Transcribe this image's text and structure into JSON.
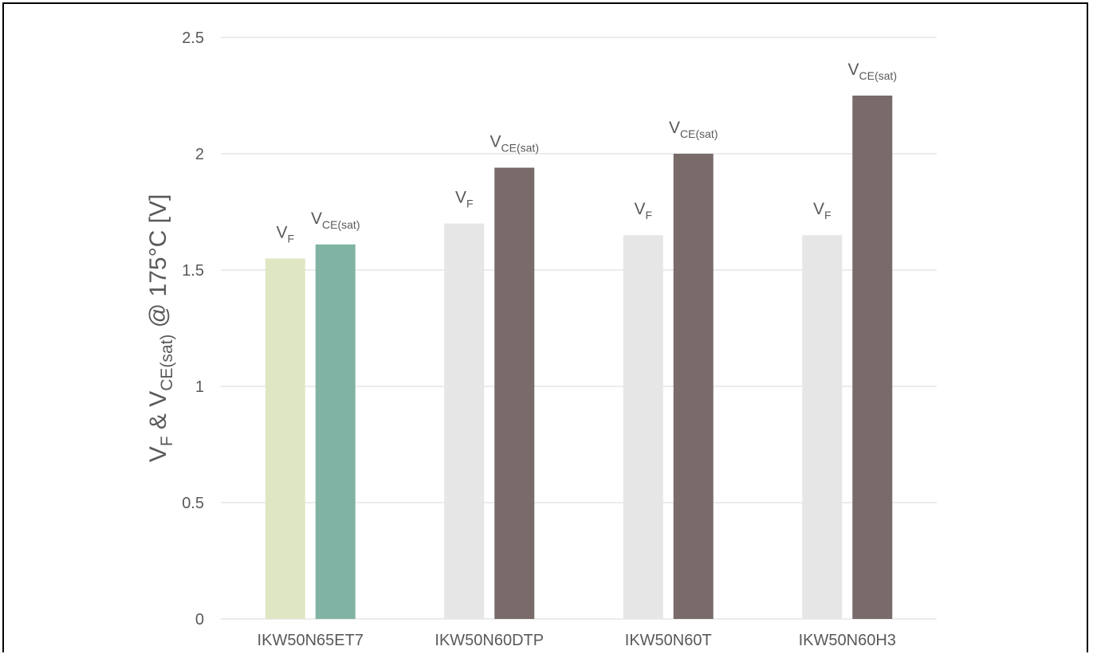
{
  "chart_data": {
    "type": "bar",
    "ylabel": {
      "parts": [
        "V",
        "F",
        " & V",
        "CE(sat)",
        " @ 175°C [V]"
      ]
    },
    "ylim": [
      0,
      2.5
    ],
    "yticks": [
      "0",
      "0.5",
      "1",
      "1.5",
      "2",
      "2.5"
    ],
    "ytick_values": [
      0,
      0.5,
      1,
      1.5,
      2,
      2.5
    ],
    "grid": true,
    "categories": [
      "IKW50N65ET7",
      "IKW50N60DTP",
      "IKW50N60T",
      "IKW50N60H3"
    ],
    "series": [
      {
        "label_main": "V",
        "label_sub": "F",
        "values": [
          1.55,
          1.7,
          1.65,
          1.65
        ],
        "colors": [
          "#dfe6c3",
          "#e7e6e6",
          "#e7e6e6",
          "#e7e6e6"
        ]
      },
      {
        "label_main": "V",
        "label_sub": "CE(sat)",
        "values": [
          1.61,
          1.94,
          2.0,
          2.25
        ],
        "colors": [
          "#80b3a4",
          "#786b6a",
          "#786b6a",
          "#786b6a"
        ]
      }
    ],
    "gridline_color": "#d9d9d9"
  }
}
